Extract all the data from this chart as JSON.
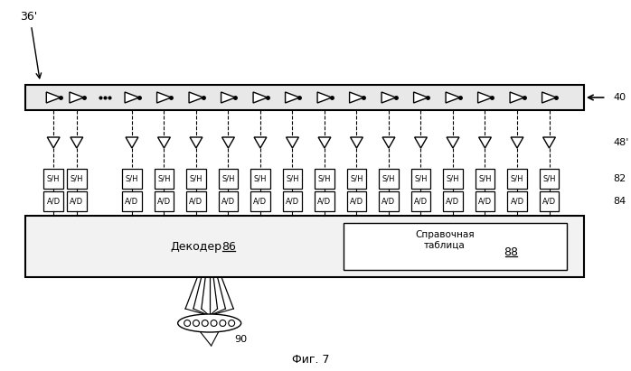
{
  "bg_color": "#ffffff",
  "line_color": "#000000",
  "fig_label": "Фиг. 7",
  "label_36": "36'",
  "label_40": "40",
  "label_48": "48'",
  "label_82": "82",
  "label_84": "84",
  "label_86": "86",
  "label_88": "88",
  "label_90": "90",
  "decoder_text": "Декодер",
  "lut_text": "Справочная\nтаблица",
  "sh_text": "S/H",
  "ad_text": "A/D",
  "total_taps": 16
}
